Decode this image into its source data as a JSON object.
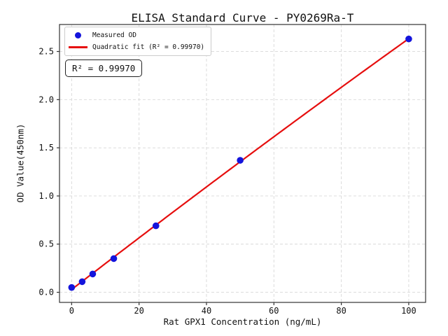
{
  "chart_data": {
    "type": "scatter",
    "title": "ELISA Standard Curve - PY0269Ra-T",
    "xlabel": "Rat GPX1 Concentration (ng/mL)",
    "ylabel": "OD Value(450nm)",
    "xlim": [
      -3.6,
      105.0
    ],
    "ylim": [
      -0.105,
      2.78
    ],
    "x_ticks": [
      0,
      20,
      40,
      60,
      80,
      100
    ],
    "y_ticks": [
      0.0,
      0.5,
      1.0,
      1.5,
      2.0,
      2.5
    ],
    "grid": true,
    "legend_position": "upper-left",
    "series": [
      {
        "name": "Measured OD",
        "kind": "scatter",
        "marker": "circle",
        "color": "#1414dc",
        "x": [
          0,
          3.125,
          6.25,
          12.5,
          25,
          50,
          100
        ],
        "y": [
          0.05,
          0.11,
          0.19,
          0.35,
          0.69,
          1.37,
          2.63
        ]
      },
      {
        "name": "Quadratic fit (R² = 0.99970)",
        "kind": "line",
        "fit": "quadratic",
        "fit_of_series": 0,
        "x_range": [
          0,
          100
        ],
        "color": "#e60e0e",
        "r_squared": "0.99970"
      }
    ],
    "annotation": {
      "text": "R² = 0.99970"
    },
    "style": {
      "grid_color": "#d8d8d8",
      "spine_color": "#333333",
      "tick_text_color": "#111111",
      "background": "#ffffff",
      "legend_border_color": "#cccccc"
    }
  }
}
